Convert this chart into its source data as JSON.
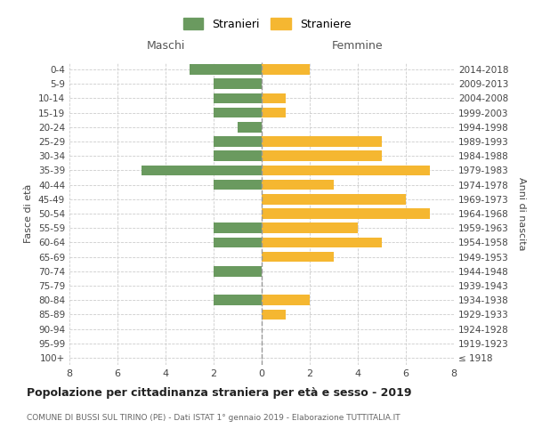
{
  "age_groups": [
    "100+",
    "95-99",
    "90-94",
    "85-89",
    "80-84",
    "75-79",
    "70-74",
    "65-69",
    "60-64",
    "55-59",
    "50-54",
    "45-49",
    "40-44",
    "35-39",
    "30-34",
    "25-29",
    "20-24",
    "15-19",
    "10-14",
    "5-9",
    "0-4"
  ],
  "birth_years": [
    "≤ 1918",
    "1919-1923",
    "1924-1928",
    "1929-1933",
    "1934-1938",
    "1939-1943",
    "1944-1948",
    "1949-1953",
    "1954-1958",
    "1959-1963",
    "1964-1968",
    "1969-1973",
    "1974-1978",
    "1979-1983",
    "1984-1988",
    "1989-1993",
    "1994-1998",
    "1999-2003",
    "2004-2008",
    "2009-2013",
    "2014-2018"
  ],
  "maschi": [
    0,
    0,
    0,
    0,
    2,
    0,
    2,
    0,
    2,
    2,
    0,
    0,
    2,
    5,
    2,
    2,
    1,
    2,
    2,
    2,
    3
  ],
  "femmine": [
    0,
    0,
    0,
    1,
    2,
    0,
    0,
    3,
    5,
    4,
    7,
    6,
    3,
    7,
    5,
    5,
    0,
    1,
    1,
    0,
    2
  ],
  "maschi_color": "#6a9a5f",
  "femmine_color": "#f5b731",
  "background_color": "#ffffff",
  "grid_color": "#cccccc",
  "title": "Popolazione per cittadinanza straniera per età e sesso - 2019",
  "subtitle": "COMUNE DI BUSSI SUL TIRINO (PE) - Dati ISTAT 1° gennaio 2019 - Elaborazione TUTTITALIA.IT",
  "xlabel_left": "Maschi",
  "xlabel_right": "Femmine",
  "ylabel_left": "Fasce di età",
  "ylabel_right": "Anni di nascita",
  "legend_maschi": "Stranieri",
  "legend_femmine": "Straniere",
  "xlim": 8
}
